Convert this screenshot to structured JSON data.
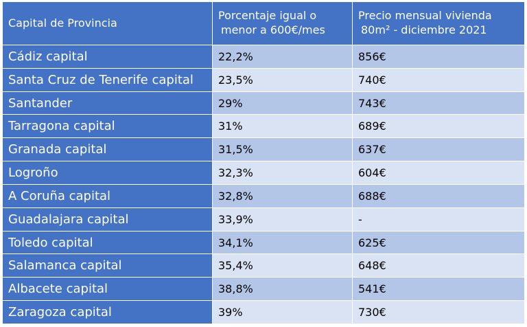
{
  "table": {
    "headers": {
      "col1": "Capital de Provincia",
      "col2_line1": "Porcentaje igual o",
      "col2_line2": "menor a 600€/mes",
      "col3_line1": "Precio mensual vivienda",
      "col3_line2": "80m² - diciembre 2021"
    },
    "rows": [
      [
        "Cádiz capital",
        "22,2%",
        "856€"
      ],
      [
        "Santa Cruz de Tenerife capital",
        "23,5%",
        "740€"
      ],
      [
        "Santander",
        "29%",
        "743€"
      ],
      [
        "Tarragona capital",
        "31%",
        "689€"
      ],
      [
        "Granada capital",
        "31,5%",
        "637€"
      ],
      [
        "Logroño",
        "32,3%",
        "604€"
      ],
      [
        "A Coruña capital",
        "32,8%",
        "688€"
      ],
      [
        "Guadalajara capital",
        "33,9%",
        "-"
      ],
      [
        "Toledo capital",
        "34,1%",
        "625€"
      ],
      [
        "Salamanca capital",
        "35,4%",
        "648€"
      ],
      [
        "Albacete capital",
        "38,8%",
        "541€"
      ],
      [
        "Zaragoza capital",
        "39%",
        "730€"
      ]
    ]
  },
  "colors": {
    "header_blue": "#4472c4",
    "row_dark": "#b4c6e7",
    "row_light": "#dae3f3"
  }
}
